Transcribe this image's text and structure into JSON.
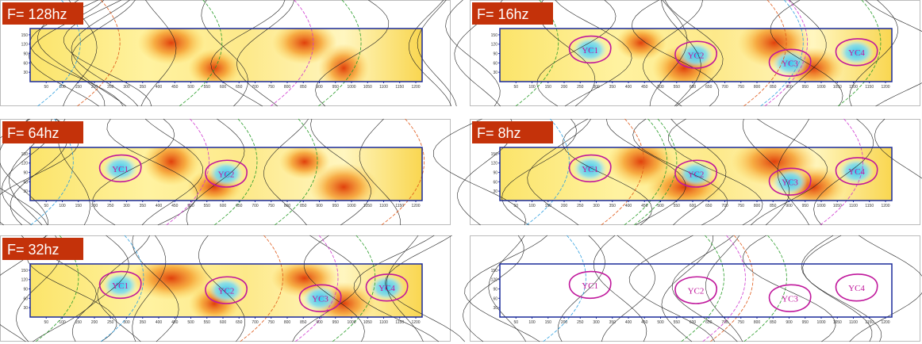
{
  "panels": [
    {
      "label": "F= 128hz",
      "zones": []
    },
    {
      "label": "F= 16hz",
      "zones": [
        "YC1",
        "YC2",
        "YC3",
        "YC4"
      ]
    },
    {
      "label": "F= 64hz",
      "zones": [
        "YC1",
        "YC2"
      ]
    },
    {
      "label": "F= 8hz",
      "zones": [
        "YC1",
        "YC2",
        "YC3",
        "YC4"
      ]
    },
    {
      "label": "F= 32hz",
      "zones": [
        "YC1",
        "YC2",
        "YC3",
        "YC4"
      ]
    },
    {
      "zones": [
        "YC1",
        "YC2",
        "YC3",
        "YC4"
      ]
    }
  ],
  "axis": {
    "x_ticks": [
      50,
      100,
      150,
      200,
      250,
      300,
      350,
      400,
      450,
      500,
      550,
      600,
      650,
      700,
      750,
      800,
      850,
      900,
      950,
      1000,
      1050,
      1100,
      1150,
      1200
    ],
    "y_ticks": [
      30,
      60,
      90,
      120,
      150
    ]
  }
}
